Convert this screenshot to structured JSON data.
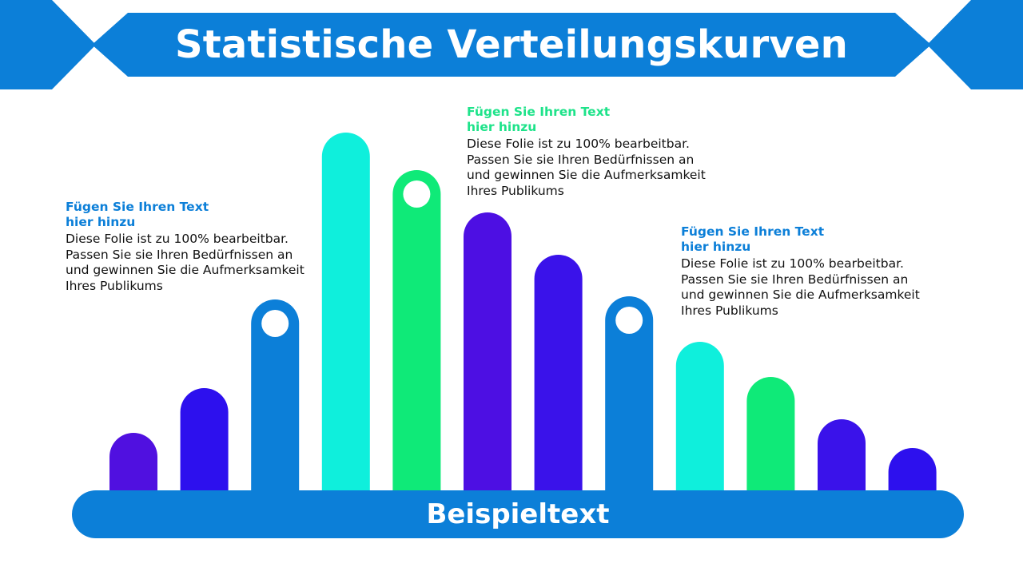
{
  "title": "Statistische Verteilungskurven",
  "colors": {
    "banner": "#0c7fd8",
    "baseline": "#0c7fd8",
    "heading_blue": "#0c7fd8",
    "heading_green": "#1ee38a"
  },
  "chart_data": {
    "type": "bar",
    "baseline_label": "Beispieltext",
    "bars": [
      {
        "value": 72,
        "color": "#5010e0",
        "marker": false
      },
      {
        "value": 128,
        "color": "#2d10ee",
        "marker": false
      },
      {
        "value": 239,
        "color": "#0c7fd8",
        "marker": true
      },
      {
        "value": 448,
        "color": "#0fefdc",
        "marker": false
      },
      {
        "value": 401,
        "color": "#0fea78",
        "marker": true
      },
      {
        "value": 348,
        "color": "#4d0fe3",
        "marker": false
      },
      {
        "value": 295,
        "color": "#3a12ea",
        "marker": false
      },
      {
        "value": 243,
        "color": "#0c7fd8",
        "marker": true
      },
      {
        "value": 186,
        "color": "#0fefdc",
        "marker": false
      },
      {
        "value": 142,
        "color": "#0fea78",
        "marker": false
      },
      {
        "value": 89,
        "color": "#3a12ea",
        "marker": false
      },
      {
        "value": 53,
        "color": "#2d10ee",
        "marker": false
      }
    ]
  },
  "callouts": [
    {
      "heading": "Fügen Sie Ihren Text hier hinzu",
      "body": [
        "Diese Folie ist zu 100% bearbeitbar.",
        "Passen Sie sie Ihren Bedürfnissen an",
        "und gewinnen Sie die Aufmerksamkeit",
        "Ihres Publikums"
      ]
    },
    {
      "heading": "Fügen Sie Ihren Text hier hinzu",
      "body": [
        "Diese Folie ist zu 100% bearbeitbar.",
        "Passen Sie sie Ihren Bedürfnissen an",
        "und gewinnen Sie die Aufmerksamkeit",
        "Ihres Publikums"
      ]
    },
    {
      "heading": "Fügen Sie Ihren Text hier hinzu",
      "body": [
        "Diese Folie ist zu 100% bearbeitbar.",
        "Passen Sie sie Ihren Bedürfnissen an",
        "und gewinnen Sie die Aufmerksamkeit",
        "Ihres Publikums"
      ]
    }
  ]
}
